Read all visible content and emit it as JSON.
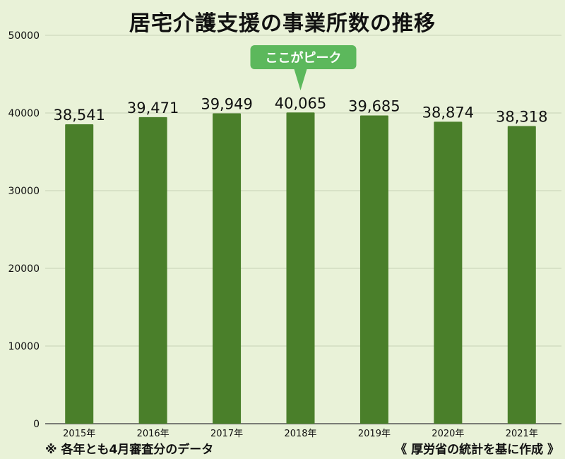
{
  "chart_data": {
    "type": "bar",
    "title": "居宅介護支援の事業所数の推移",
    "categories": [
      "2015年",
      "2016年",
      "2017年",
      "2018年",
      "2019年",
      "2020年",
      "2021年"
    ],
    "values": [
      38541,
      39471,
      39949,
      40065,
      39685,
      38874,
      38318
    ],
    "value_labels": [
      "38,541",
      "39,471",
      "39,949",
      "40,065",
      "39,685",
      "38,874",
      "38,318"
    ],
    "yticks": [
      "0",
      "10000",
      "20000",
      "30000",
      "40000",
      "50000"
    ],
    "ylim": [
      0,
      50000
    ],
    "xlabel": "",
    "ylabel": "",
    "grid": "horizontal",
    "annotation": {
      "text": "ここがピーク",
      "category": "2018年"
    },
    "colors": {
      "bar": "#4a7f2a",
      "background": "#e9f2d8",
      "callout": "#5cb85c",
      "grid": "#c7d3b6"
    }
  },
  "footnote_left": "※ 各年とも4月審査分のデータ",
  "footnote_right": "《 厚労省の統計を基に作成 》"
}
